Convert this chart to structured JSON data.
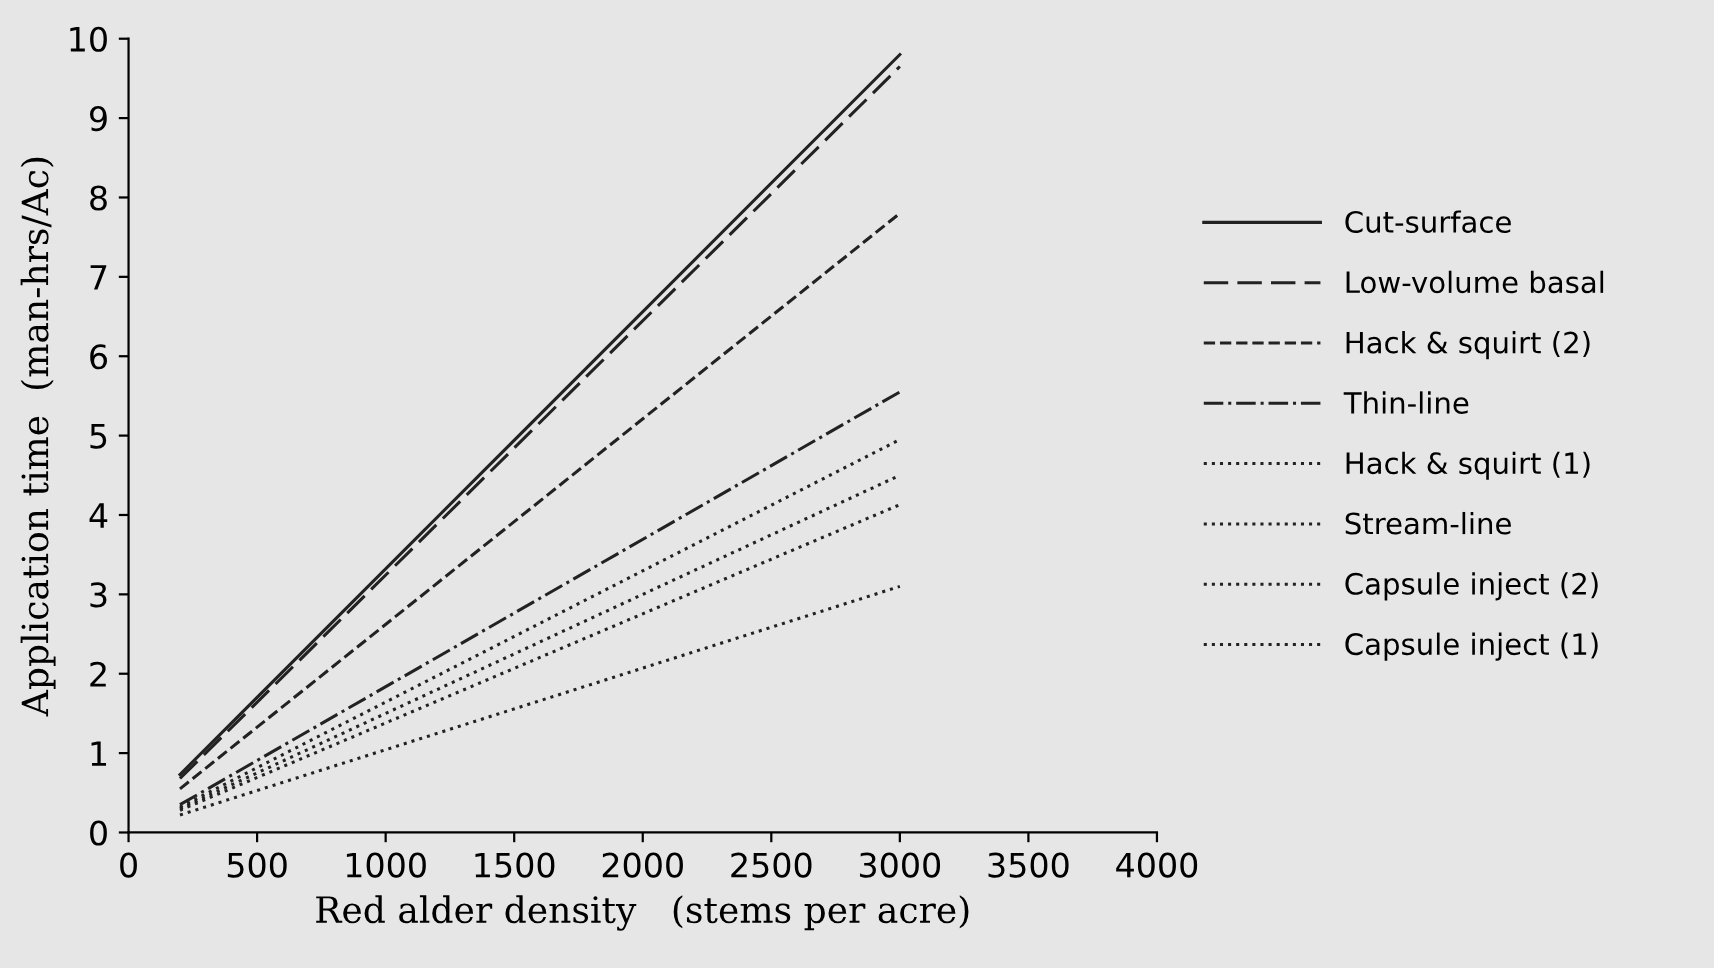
{
  "chart_data": {
    "type": "line",
    "xlabel": "Red alder density   (stems per acre)",
    "ylabel": "Application time  (man-hrs/Ac)",
    "xlim": [
      0,
      4000
    ],
    "xticks": [
      0,
      500,
      1000,
      1500,
      2000,
      2500,
      3000,
      3500,
      4000
    ],
    "ylim": [
      0,
      10
    ],
    "yticks": [
      0,
      1,
      2,
      3,
      4,
      5,
      6,
      7,
      8,
      9,
      10
    ],
    "grid": false,
    "legend": "right",
    "marker": "none",
    "x": [
      200,
      3000
    ],
    "series": [
      {
        "name": "Cut-surface",
        "color": "#222222",
        "line_style": "solid",
        "values": [
          0.73,
          9.8
        ]
      },
      {
        "name": "Low-volume basal",
        "color": "#222222",
        "line_style": "dashed",
        "values": [
          0.68,
          9.65
        ]
      },
      {
        "name": "Hack & squirt (2)",
        "color": "#222222",
        "line_style": "dashed",
        "values": [
          0.55,
          7.8
        ]
      },
      {
        "name": "Thin-line",
        "color": "#222222",
        "line_style": "dashdot",
        "values": [
          0.35,
          5.55
        ]
      },
      {
        "name": "Hack & squirt (1)",
        "color": "#222222",
        "line_style": "dotted",
        "values": [
          0.32,
          4.95
        ]
      },
      {
        "name": "Stream-line",
        "color": "#222222",
        "line_style": "dotted",
        "values": [
          0.3,
          4.5
        ]
      },
      {
        "name": "Capsule inject (2)",
        "color": "#222222",
        "line_style": "dotted",
        "values": [
          0.28,
          4.13
        ]
      },
      {
        "name": "Capsule inject (1)",
        "color": "#222222",
        "line_style": "dotted",
        "values": [
          0.22,
          3.1
        ]
      }
    ]
  }
}
